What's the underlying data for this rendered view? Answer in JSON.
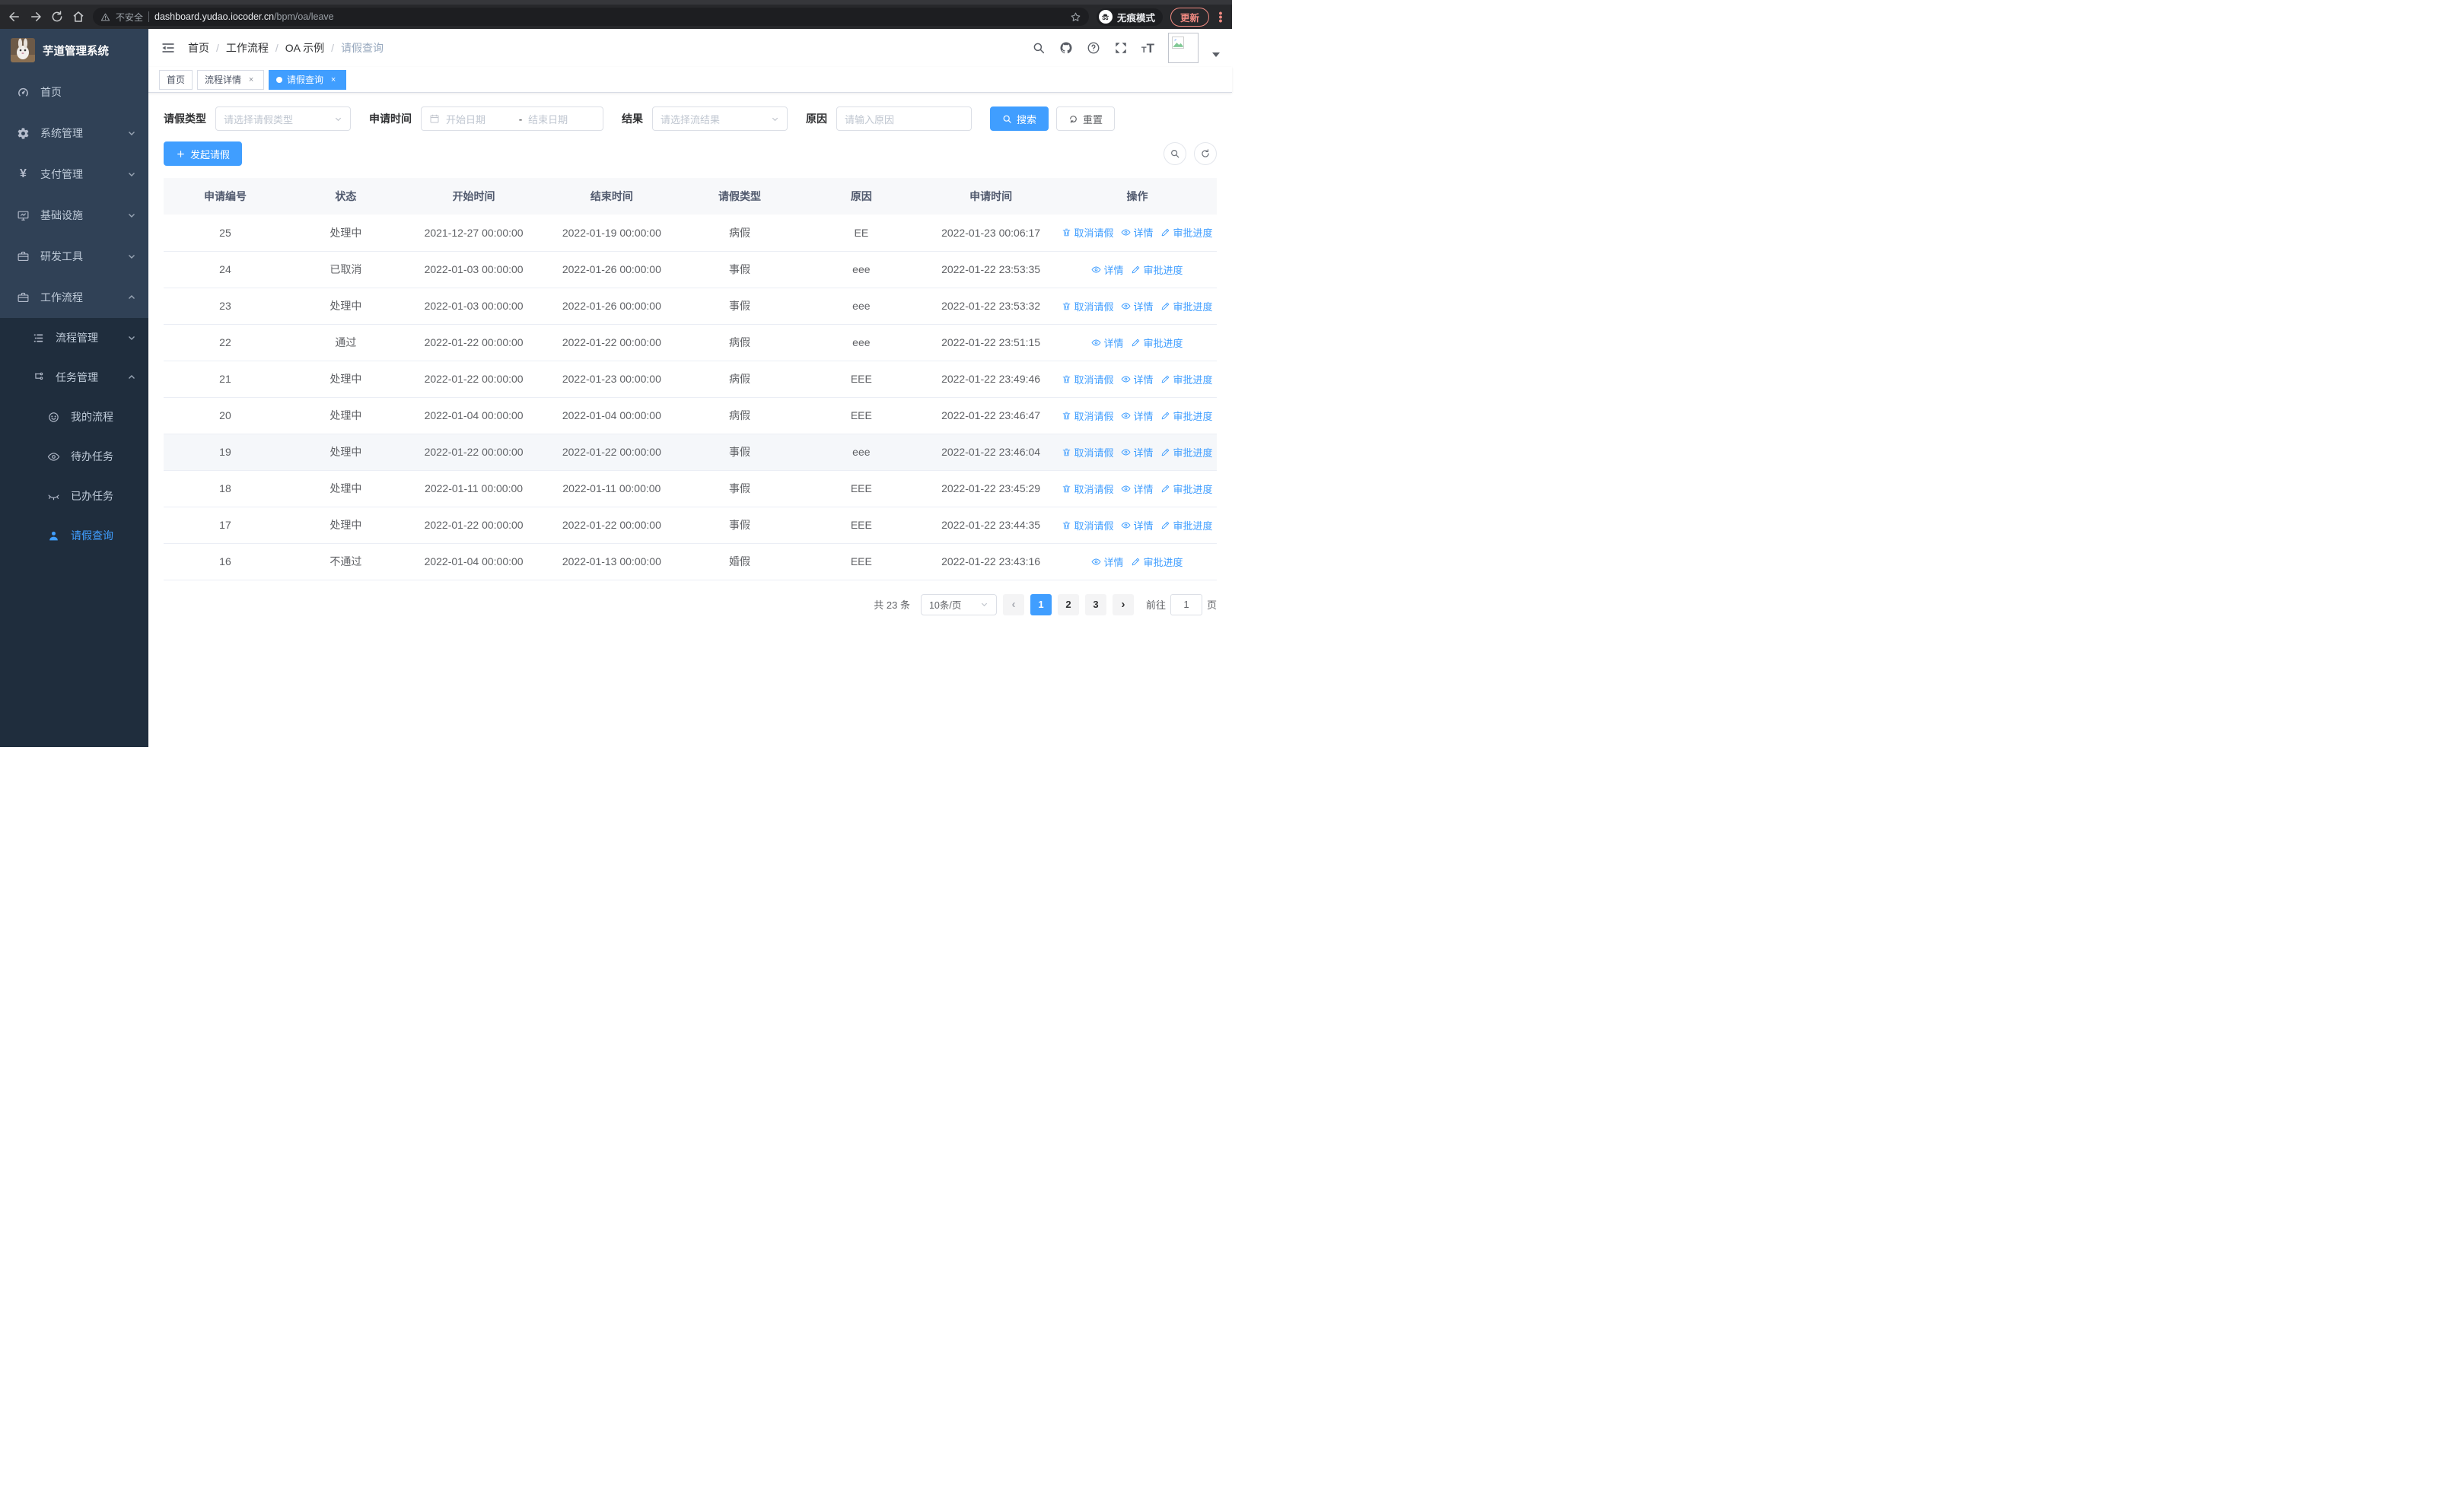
{
  "browser": {
    "security_label": "不安全",
    "url_host": "dashboard.yudao.iocoder.cn",
    "url_path": "/bpm/oa/leave",
    "incognito_label": "无痕模式",
    "update_label": "更新"
  },
  "sidebar": {
    "app_title": "芋道管理系统",
    "items": [
      {
        "label": "首页"
      },
      {
        "label": "系统管理"
      },
      {
        "label": "支付管理"
      },
      {
        "label": "基础设施"
      },
      {
        "label": "研发工具"
      },
      {
        "label": "工作流程"
      },
      {
        "label": "流程管理"
      },
      {
        "label": "任务管理"
      },
      {
        "label": "我的流程"
      },
      {
        "label": "待办任务"
      },
      {
        "label": "已办任务"
      },
      {
        "label": "请假查询"
      }
    ]
  },
  "navbar": {
    "breadcrumb": [
      {
        "label": "首页"
      },
      {
        "label": "工作流程"
      },
      {
        "label": "OA 示例"
      },
      {
        "label": "请假查询"
      }
    ]
  },
  "tabs": [
    {
      "label": "首页",
      "closable": false,
      "active": false
    },
    {
      "label": "流程详情",
      "closable": true,
      "active": false
    },
    {
      "label": "请假查询",
      "closable": true,
      "active": true
    }
  ],
  "filters": {
    "leave_type_label": "请假类型",
    "leave_type_placeholder": "请选择请假类型",
    "apply_time_label": "申请时间",
    "date_start_placeholder": "开始日期",
    "date_separator": "-",
    "date_end_placeholder": "结束日期",
    "result_label": "结果",
    "result_placeholder": "请选择流结果",
    "reason_label": "原因",
    "reason_placeholder": "请输入原因",
    "search_label": "搜索",
    "reset_label": "重置"
  },
  "toolbar": {
    "create_label": "发起请假"
  },
  "table": {
    "columns": [
      "申请编号",
      "状态",
      "开始时间",
      "结束时间",
      "请假类型",
      "原因",
      "申请时间",
      "操作"
    ],
    "col_keys": [
      "id",
      "status",
      "start",
      "end",
      "type",
      "reason",
      "applied"
    ],
    "action_labels": {
      "cancel": "取消请假",
      "detail": "详情",
      "progress": "审批进度"
    },
    "rows": [
      {
        "id": "25",
        "status": "处理中",
        "start": "2021-12-27 00:00:00",
        "end": "2022-01-19 00:00:00",
        "type": "病假",
        "reason": "EE",
        "applied": "2022-01-23 00:06:17",
        "actions": [
          "cancel",
          "detail",
          "progress"
        ],
        "highlight": false
      },
      {
        "id": "24",
        "status": "已取消",
        "start": "2022-01-03 00:00:00",
        "end": "2022-01-26 00:00:00",
        "type": "事假",
        "reason": "eee",
        "applied": "2022-01-22 23:53:35",
        "actions": [
          "detail",
          "progress"
        ],
        "highlight": false
      },
      {
        "id": "23",
        "status": "处理中",
        "start": "2022-01-03 00:00:00",
        "end": "2022-01-26 00:00:00",
        "type": "事假",
        "reason": "eee",
        "applied": "2022-01-22 23:53:32",
        "actions": [
          "cancel",
          "detail",
          "progress"
        ],
        "highlight": false
      },
      {
        "id": "22",
        "status": "通过",
        "start": "2022-01-22 00:00:00",
        "end": "2022-01-22 00:00:00",
        "type": "病假",
        "reason": "eee",
        "applied": "2022-01-22 23:51:15",
        "actions": [
          "detail",
          "progress"
        ],
        "highlight": false
      },
      {
        "id": "21",
        "status": "处理中",
        "start": "2022-01-22 00:00:00",
        "end": "2022-01-23 00:00:00",
        "type": "病假",
        "reason": "EEE",
        "applied": "2022-01-22 23:49:46",
        "actions": [
          "cancel",
          "detail",
          "progress"
        ],
        "highlight": false
      },
      {
        "id": "20",
        "status": "处理中",
        "start": "2022-01-04 00:00:00",
        "end": "2022-01-04 00:00:00",
        "type": "病假",
        "reason": "EEE",
        "applied": "2022-01-22 23:46:47",
        "actions": [
          "cancel",
          "detail",
          "progress"
        ],
        "highlight": false
      },
      {
        "id": "19",
        "status": "处理中",
        "start": "2022-01-22 00:00:00",
        "end": "2022-01-22 00:00:00",
        "type": "事假",
        "reason": "eee",
        "applied": "2022-01-22 23:46:04",
        "actions": [
          "cancel",
          "detail",
          "progress"
        ],
        "highlight": true
      },
      {
        "id": "18",
        "status": "处理中",
        "start": "2022-01-11 00:00:00",
        "end": "2022-01-11 00:00:00",
        "type": "事假",
        "reason": "EEE",
        "applied": "2022-01-22 23:45:29",
        "actions": [
          "cancel",
          "detail",
          "progress"
        ],
        "highlight": false
      },
      {
        "id": "17",
        "status": "处理中",
        "start": "2022-01-22 00:00:00",
        "end": "2022-01-22 00:00:00",
        "type": "事假",
        "reason": "EEE",
        "applied": "2022-01-22 23:44:35",
        "actions": [
          "cancel",
          "detail",
          "progress"
        ],
        "highlight": false
      },
      {
        "id": "16",
        "status": "不通过",
        "start": "2022-01-04 00:00:00",
        "end": "2022-01-13 00:00:00",
        "type": "婚假",
        "reason": "EEE",
        "applied": "2022-01-22 23:43:16",
        "actions": [
          "detail",
          "progress"
        ],
        "highlight": false
      }
    ]
  },
  "pagination": {
    "total_label": "共 23 条",
    "page_size_value": "10条/页",
    "pages": [
      "1",
      "2",
      "3"
    ],
    "active_page": "1",
    "goto_label": "前往",
    "goto_value": "1",
    "goto_suffix": "页"
  },
  "colors": {
    "primary": "#409EFF",
    "sidebar_bg": "#304156",
    "sidebar_submenu_bg": "#1f2d3d",
    "tag_active": "#409EFF",
    "update_accent": "#f28b82"
  }
}
